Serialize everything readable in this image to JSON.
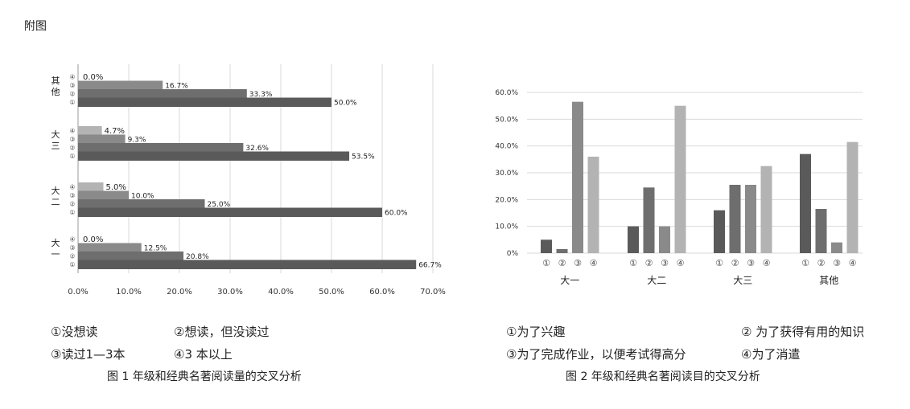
{
  "page_label": "附图",
  "colors": {
    "c1": "#5a5a5a",
    "c2": "#6e6e6e",
    "c3": "#8a8a8a",
    "c4": "#b3b3b3",
    "grid": "#d9d9d9"
  },
  "chart_data": [
    {
      "type": "bar",
      "orientation": "horizontal",
      "title": "图 1 年级和经典名著阅读量的交叉分析",
      "xlim": [
        0,
        70
      ],
      "x_ticks": [
        "0.0%",
        "10.0%",
        "20.0%",
        "30.0%",
        "40.0%",
        "50.0%",
        "60.0%",
        "70.0%"
      ],
      "grid": true,
      "groups": [
        {
          "name": "大一",
          "bars": [
            {
              "label": "①",
              "value": 66.7,
              "text": "66.7%"
            },
            {
              "label": "②",
              "value": 20.8,
              "text": "20.8%"
            },
            {
              "label": "③",
              "value": 12.5,
              "text": "12.5%"
            },
            {
              "label": "④",
              "value": 0.0,
              "text": "0.0%"
            }
          ]
        },
        {
          "name": "大二",
          "bars": [
            {
              "label": "①",
              "value": 60.0,
              "text": "60.0%"
            },
            {
              "label": "②",
              "value": 25.0,
              "text": "25.0%"
            },
            {
              "label": "③",
              "value": 10.0,
              "text": "10.0%"
            },
            {
              "label": "④",
              "value": 5.0,
              "text": "5.0%"
            }
          ]
        },
        {
          "name": "大三",
          "bars": [
            {
              "label": "①",
              "value": 53.5,
              "text": "53.5%"
            },
            {
              "label": "②",
              "value": 32.6,
              "text": "32.6%"
            },
            {
              "label": "③",
              "value": 9.3,
              "text": "9.3%"
            },
            {
              "label": "④",
              "value": 4.7,
              "text": "4.7%"
            }
          ]
        },
        {
          "name": "其他",
          "bars": [
            {
              "label": "①",
              "value": 50.0,
              "text": "50.0%"
            },
            {
              "label": "②",
              "value": 33.3,
              "text": "33.3%"
            },
            {
              "label": "③",
              "value": 16.7,
              "text": "16.7%"
            },
            {
              "label": "④",
              "value": 0.0,
              "text": "0.0%"
            }
          ]
        }
      ],
      "legend": [
        "①没想读",
        "②想读，但没读过",
        "③读过1—3本",
        "④3 本以上"
      ]
    },
    {
      "type": "bar",
      "orientation": "vertical",
      "title": "图 2 年级和经典名著阅读目的交叉分析",
      "ylim": [
        0,
        60
      ],
      "y_ticks": [
        "0%",
        "10.0%",
        "20.0%",
        "30.0%",
        "40.0%",
        "50.0%",
        "60.0%"
      ],
      "grid": true,
      "groups": [
        {
          "name": "大一",
          "values": [
            5,
            1.5,
            56.5,
            36
          ]
        },
        {
          "name": "大二",
          "values": [
            10,
            24.5,
            10,
            55
          ]
        },
        {
          "name": "大三",
          "values": [
            16,
            25.5,
            25.5,
            32.5
          ]
        },
        {
          "name": "其他",
          "values": [
            37,
            16.5,
            4,
            41.5
          ]
        }
      ],
      "series_labels": [
        "①",
        "②",
        "③",
        "④"
      ],
      "legend": [
        "①为了兴趣",
        "② 为了获得有用的知识",
        "③为了完成作业，以便考试得高分",
        "④为了消遣"
      ]
    }
  ]
}
